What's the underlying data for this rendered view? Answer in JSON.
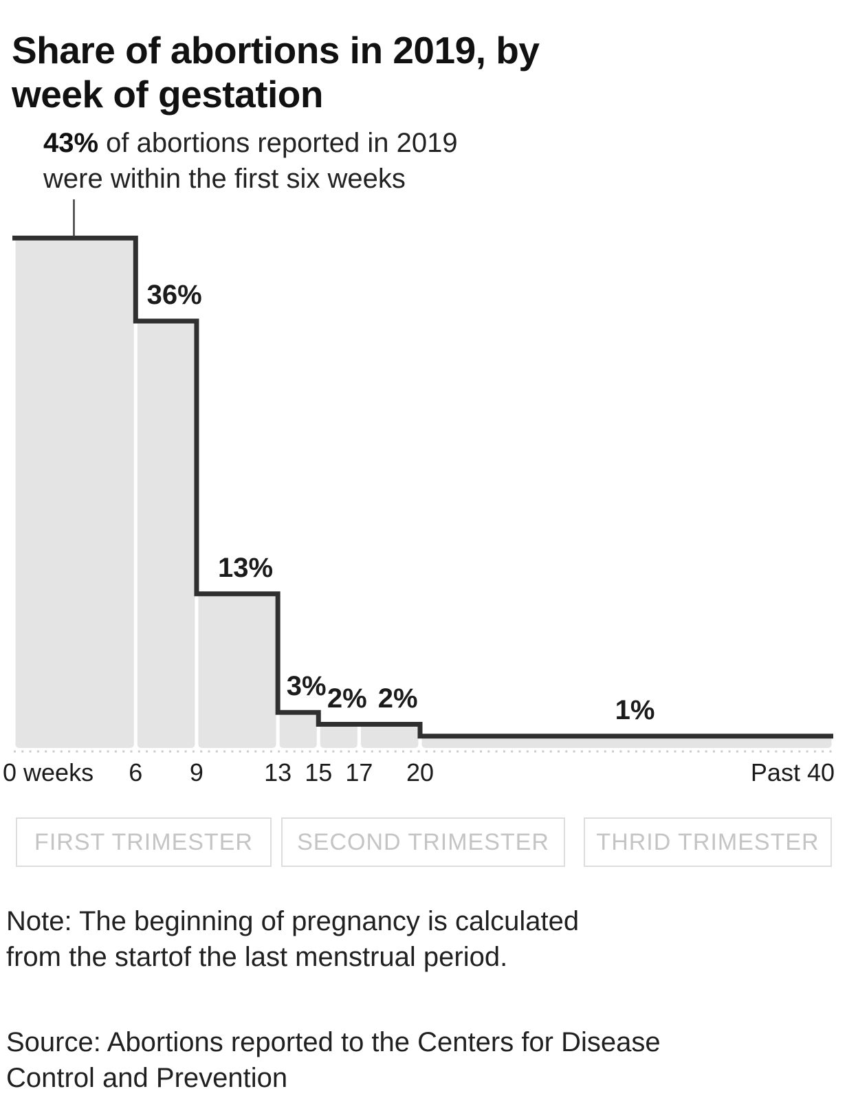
{
  "header": {
    "title": "Share of abortions in 2019, by week of gestation"
  },
  "annotation": {
    "highlight": "43%",
    "rest": " of abortions reported in 2019 were within the first six weeks"
  },
  "chart_data": {
    "type": "step-histogram",
    "title": "Share of abortions in 2019, by week of gestation",
    "x_axis": "weeks of gestation",
    "y_unit": "percent of abortions reported in 2019",
    "bins": [
      {
        "from_week": 0,
        "to_week": 6,
        "value_pct": 43,
        "bar_label": ""
      },
      {
        "from_week": 6,
        "to_week": 9,
        "value_pct": 36,
        "bar_label": "36%"
      },
      {
        "from_week": 9,
        "to_week": 13,
        "value_pct": 13,
        "bar_label": "13%"
      },
      {
        "from_week": 13,
        "to_week": 15,
        "value_pct": 3,
        "bar_label": "3%"
      },
      {
        "from_week": 15,
        "to_week": 17,
        "value_pct": 2,
        "bar_label": "2%"
      },
      {
        "from_week": 17,
        "to_week": 20,
        "value_pct": 2,
        "bar_label": "2%"
      },
      {
        "from_week": 20,
        "to_week": 40,
        "value_pct": 1,
        "bar_label": "1%"
      }
    ],
    "x_ticks": [
      {
        "label": "0 weeks",
        "week": 0,
        "align": "left"
      },
      {
        "label": "6",
        "week": 6,
        "align": "center"
      },
      {
        "label": "9",
        "week": 9,
        "align": "center"
      },
      {
        "label": "13",
        "week": 13,
        "align": "center"
      },
      {
        "label": "15",
        "week": 15,
        "align": "center"
      },
      {
        "label": "17",
        "week": 17,
        "align": "center"
      },
      {
        "label": "20",
        "week": 20,
        "align": "center"
      },
      {
        "label": "Past 40",
        "week": 40,
        "align": "right"
      }
    ],
    "bands": [
      {
        "label": "FIRST TRIMESTER"
      },
      {
        "label": "SECOND TRIMESTER"
      },
      {
        "label": "THRID TRIMESTER"
      }
    ],
    "grid": "none",
    "legend": "none"
  },
  "notes": {
    "note": "Note: The beginning of pregnancy is calculated from the startof the last menstrual period.",
    "source": "Source: Abortions reported to the Centers for Disease Control and Prevention"
  },
  "style": {
    "background": "#ffffff",
    "bar_fill": "#e4e4e4",
    "step_line": "#2f2f2f",
    "pointer_line": "#3c3c3c",
    "dotted_baseline": "#cbcbcb",
    "text": "#1b1b1b",
    "muted_text": "#c4c4c4",
    "band_border": "#dddddd"
  }
}
